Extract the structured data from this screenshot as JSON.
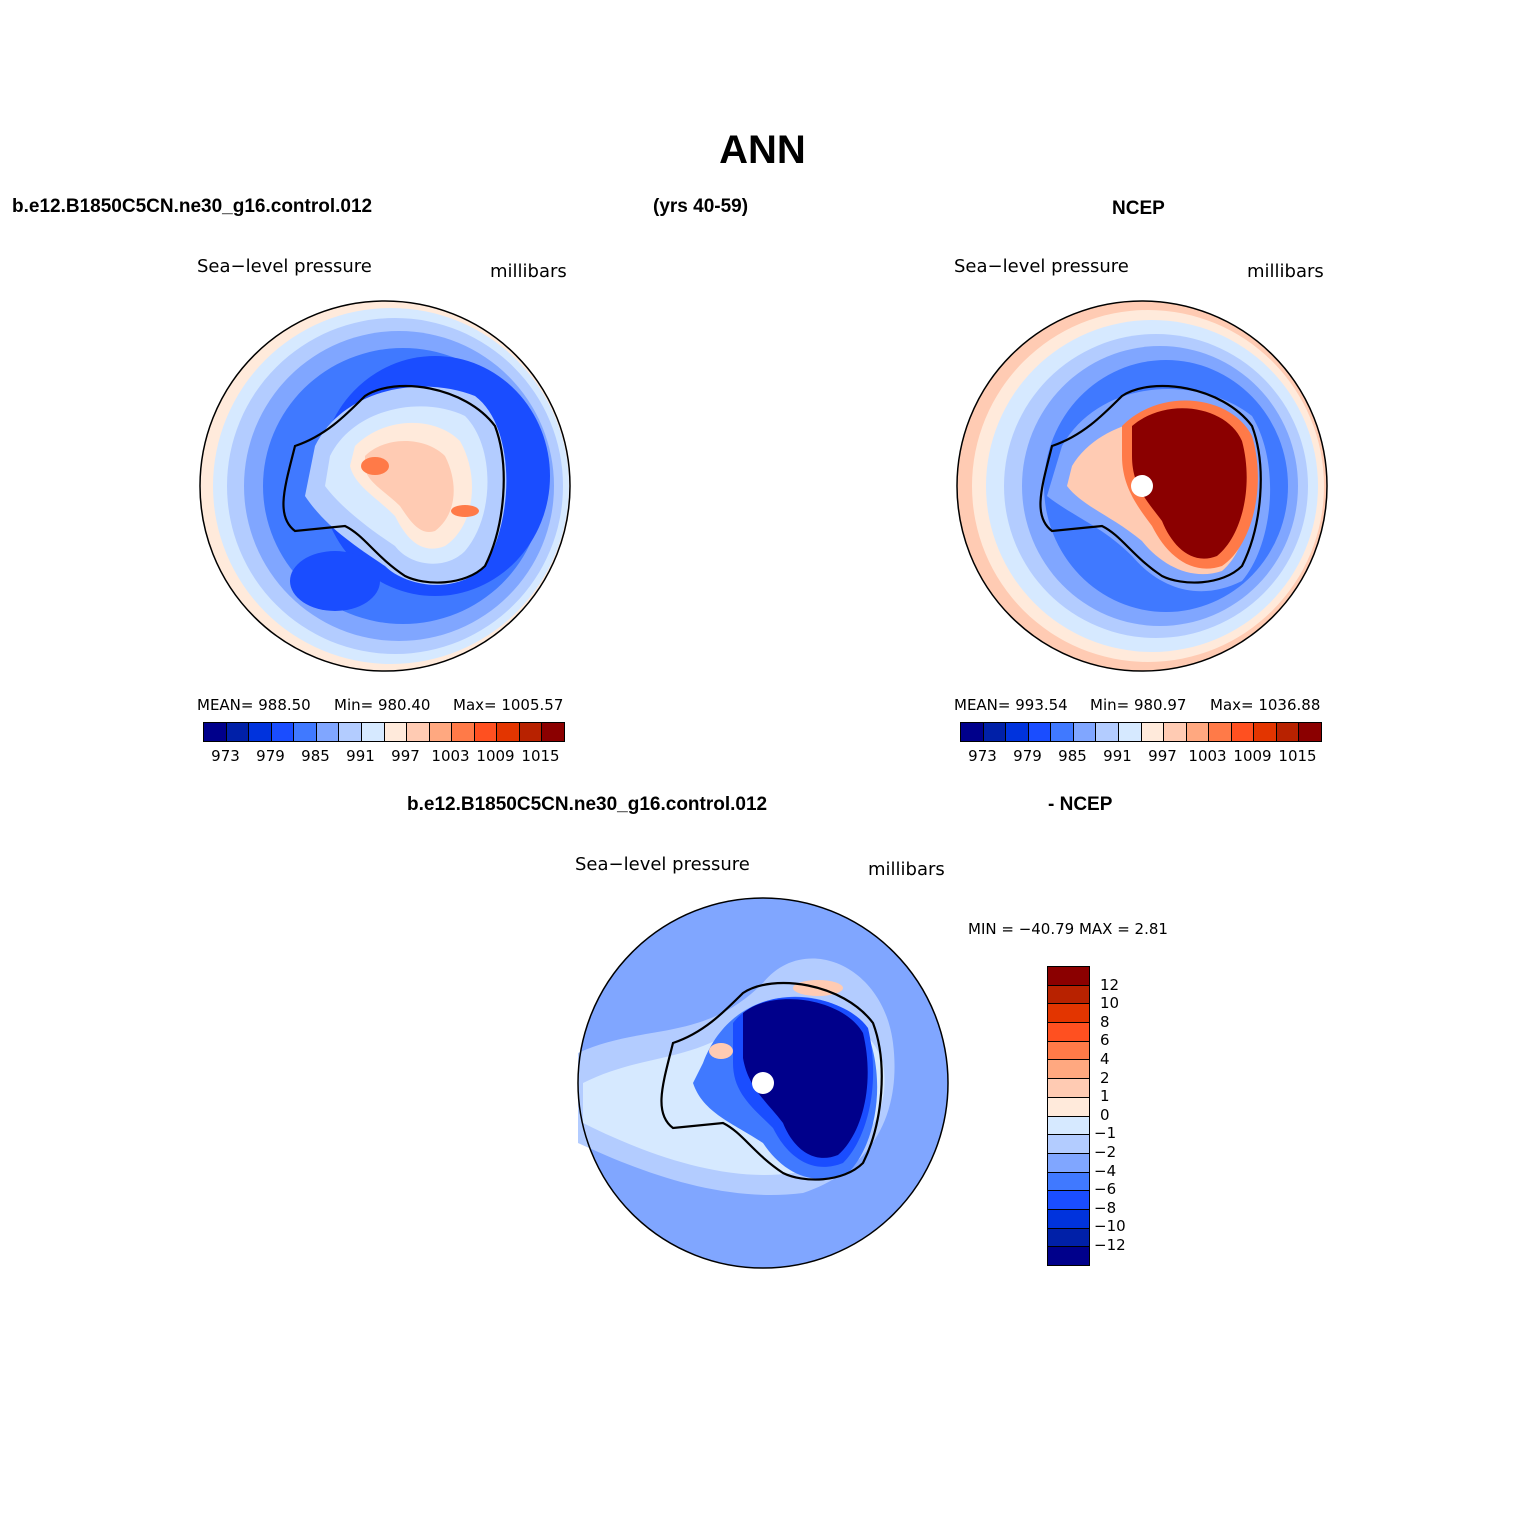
{
  "title": "ANN",
  "top_header": {
    "left": "b.e12.B1850C5CN.ne30_g16.control.012",
    "center": "(yrs 40-59)",
    "right": "NCEP"
  },
  "bottom_header": {
    "left": "b.e12.B1850C5CN.ne30_g16.control.012",
    "right": "- NCEP"
  },
  "palette": [
    "#00008b",
    "#0020a8",
    "#0033dd",
    "#1a4dff",
    "#4079ff",
    "#80a6ff",
    "#b3ccff",
    "#d6e9ff",
    "#ffeadb",
    "#ffcbb3",
    "#ffa880",
    "#ff7a48",
    "#ff5020",
    "#e33500",
    "#b82200",
    "#8b0000"
  ],
  "panels": [
    {
      "variable": "Sea−level pressure",
      "units": "millibars",
      "stats": {
        "mean": "MEAN=  988.50",
        "min": "Min=  980.40",
        "max": "Max=  1005.57"
      }
    },
    {
      "variable": "Sea−level pressure",
      "units": "millibars",
      "stats": {
        "mean": "MEAN=  993.54",
        "min": "Min=  980.97",
        "max": "Max=  1036.88"
      }
    },
    {
      "variable": "Sea−level pressure",
      "units": "millibars",
      "stats": {
        "minmax": "MIN = −40.79  MAX =    2.81"
      }
    }
  ],
  "colorbar_abs": {
    "ticks": [
      "973",
      "979",
      "985",
      "991",
      "997",
      "1003",
      "1009",
      "1015"
    ]
  },
  "colorbar_diff": {
    "ticks": [
      "12",
      "10",
      "8",
      "6",
      "4",
      "2",
      "1",
      "0",
      "−1",
      "−2",
      "−4",
      "−6",
      "−8",
      "−10",
      "−12"
    ]
  }
}
